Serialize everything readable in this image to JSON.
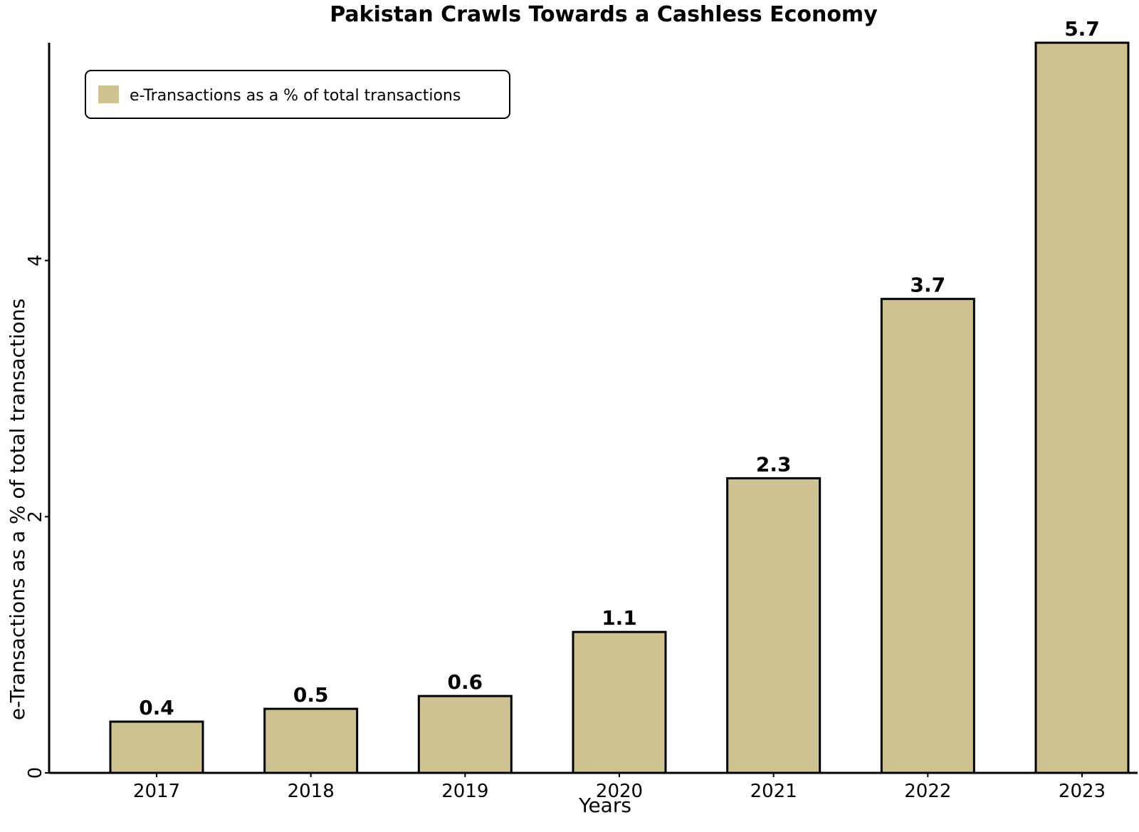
{
  "chart_data": {
    "type": "bar",
    "title": "Pakistan Crawls Towards a Cashless Economy",
    "xlabel": "Years",
    "ylabel": "e-Transactions as a % of total transactions",
    "categories": [
      "2017",
      "2018",
      "2019",
      "2020",
      "2021",
      "2022",
      "2023"
    ],
    "series": [
      {
        "name": "e-Transactions as a % of total transactions",
        "values": [
          0.4,
          0.5,
          0.6,
          1.1,
          2.3,
          3.7,
          5.7
        ],
        "value_labels": [
          "0.4",
          "0.5",
          "0.6",
          "1.1",
          "2.3",
          "3.7",
          "5.7"
        ]
      }
    ],
    "yticks": [
      0,
      2,
      4
    ],
    "ytick_labels": [
      "0",
      "2",
      "4"
    ],
    "ylim": [
      0,
      5.7
    ],
    "grid": false,
    "legend_position": "top-left",
    "bar_color": "#cfc292",
    "edge_color": "#000000"
  }
}
